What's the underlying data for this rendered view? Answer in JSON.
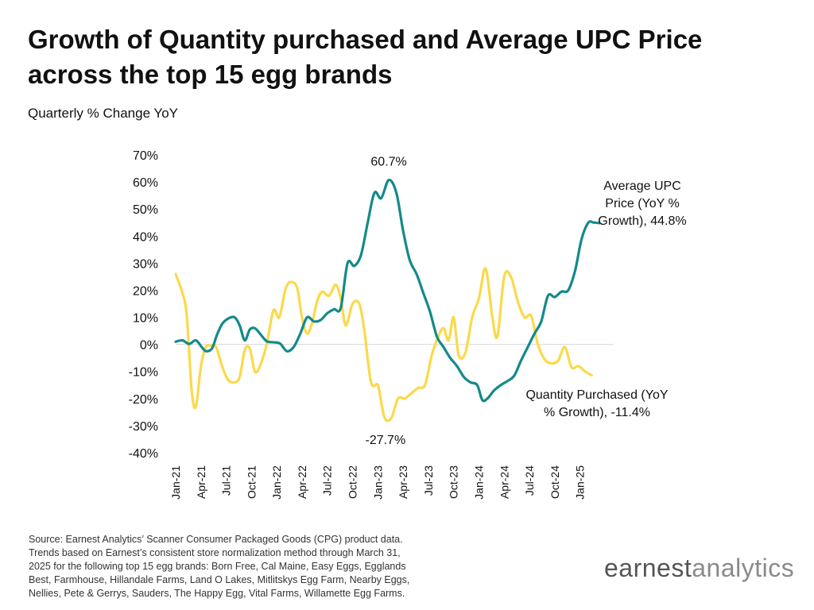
{
  "title_line1": "Growth of Quantity purchased and Average UPC Price",
  "title_line2": "across the top 15 egg brands",
  "subtitle": "Quarterly % Change YoY",
  "source_lines": [
    "Source: Earnest Analytics’ Scanner Consumer Packaged Goods (CPG) product data.",
    "Trends based on Earnest’s consistent store normalization method through March 31,",
    "2025 for the following top 15 egg brands: Born Free, Cal Maine, Easy Eggs, Egglands",
    "Best, Farmhouse, Hillandale Farms, Land O Lakes, Mitlitskys Egg Farm, Nearby Eggs,",
    "Nellies, Pete & Gerrys, Sauders, The Happy Egg, Vital Farms, Willamette Egg Farms."
  ],
  "logo": {
    "part1": "earnest",
    "part2": "analytics"
  },
  "chart_data": {
    "type": "line",
    "y_ticks": [
      "70%",
      "60%",
      "50%",
      "40%",
      "30%",
      "20%",
      "10%",
      "0%",
      "-10%",
      "-20%",
      "-30%",
      "-40%"
    ],
    "ylim": [
      -40,
      70
    ],
    "xlim": [
      0,
      52
    ],
    "x_ticks": [
      {
        "label": "Jan-21",
        "x": 0
      },
      {
        "label": "Apr-21",
        "x": 3
      },
      {
        "label": "Jul-21",
        "x": 6
      },
      {
        "label": "Oct-21",
        "x": 9
      },
      {
        "label": "Jan-22",
        "x": 12
      },
      {
        "label": "Apr-22",
        "x": 15
      },
      {
        "label": "Jul-22",
        "x": 18
      },
      {
        "label": "Oct-22",
        "x": 21
      },
      {
        "label": "Jan-23",
        "x": 24
      },
      {
        "label": "Apr-23",
        "x": 27
      },
      {
        "label": "Jul-23",
        "x": 30
      },
      {
        "label": "Oct-23",
        "x": 33
      },
      {
        "label": "Jan-24",
        "x": 36
      },
      {
        "label": "Apr-24",
        "x": 39
      },
      {
        "label": "Jul-24",
        "x": 42
      },
      {
        "label": "Oct-24",
        "x": 45
      },
      {
        "label": "Jan-25",
        "x": 48
      }
    ],
    "zero_line": true,
    "series": [
      {
        "color": "#148a8a",
        "points": [
          [
            0,
            1
          ],
          [
            0.8,
            1.5
          ],
          [
            1.6,
            0.2
          ],
          [
            2.4,
            1.5
          ],
          [
            3.1,
            -1
          ],
          [
            3.6,
            -2.5
          ],
          [
            4.3,
            -1.5
          ],
          [
            4.9,
            3.5
          ],
          [
            5.5,
            7.5
          ],
          [
            6.2,
            9.5
          ],
          [
            7.0,
            10
          ],
          [
            7.6,
            7
          ],
          [
            8.2,
            1.5
          ],
          [
            8.8,
            5.5
          ],
          [
            9.4,
            6
          ],
          [
            10.0,
            4
          ],
          [
            10.8,
            1.2
          ],
          [
            11.6,
            0.8
          ],
          [
            12.4,
            0.3
          ],
          [
            13.2,
            -2.5
          ],
          [
            14.0,
            -1
          ],
          [
            14.8,
            4
          ],
          [
            15.6,
            10
          ],
          [
            16.4,
            8.5
          ],
          [
            17.2,
            9
          ],
          [
            18.0,
            11.5
          ],
          [
            18.8,
            13
          ],
          [
            19.6,
            13.5
          ],
          [
            20.4,
            30
          ],
          [
            21.2,
            29
          ],
          [
            22.0,
            33
          ],
          [
            22.8,
            45
          ],
          [
            23.6,
            56
          ],
          [
            24.4,
            54
          ],
          [
            25.3,
            60.7
          ],
          [
            26.2,
            56
          ],
          [
            27.0,
            42
          ],
          [
            27.8,
            31
          ],
          [
            28.6,
            26
          ],
          [
            29.4,
            19
          ],
          [
            30.2,
            12
          ],
          [
            31.0,
            3
          ],
          [
            31.8,
            -1
          ],
          [
            32.6,
            -5
          ],
          [
            33.4,
            -8
          ],
          [
            34.2,
            -12
          ],
          [
            35.0,
            -14
          ],
          [
            35.8,
            -15
          ],
          [
            36.4,
            -20.5
          ],
          [
            37.0,
            -20
          ],
          [
            37.8,
            -17
          ],
          [
            38.6,
            -15
          ],
          [
            39.4,
            -13.5
          ],
          [
            40.2,
            -11.5
          ],
          [
            41.0,
            -6
          ],
          [
            41.8,
            -1
          ],
          [
            42.6,
            4
          ],
          [
            43.4,
            8.5
          ],
          [
            44.2,
            18
          ],
          [
            45.0,
            17.5
          ],
          [
            45.8,
            19.5
          ],
          [
            46.6,
            20
          ],
          [
            47.4,
            27
          ],
          [
            48.2,
            39
          ],
          [
            49.0,
            45
          ],
          [
            49.6,
            45
          ],
          [
            50.3,
            44.8
          ]
        ],
        "label_lines": [
          "Average UPC",
          "Price (YoY %",
          "Growth), 44.8%"
        ]
      },
      {
        "color": "#fbd94b",
        "points": [
          [
            0,
            26
          ],
          [
            0.7,
            20
          ],
          [
            1.3,
            11
          ],
          [
            1.9,
            -17
          ],
          [
            2.4,
            -23
          ],
          [
            3.0,
            -8
          ],
          [
            3.6,
            -1
          ],
          [
            4.2,
            -0.5
          ],
          [
            4.8,
            -1
          ],
          [
            5.5,
            -8
          ],
          [
            6.2,
            -13
          ],
          [
            7.0,
            -14
          ],
          [
            7.6,
            -12
          ],
          [
            8.2,
            -2
          ],
          [
            8.8,
            -1.5
          ],
          [
            9.4,
            -10
          ],
          [
            10.0,
            -8
          ],
          [
            10.8,
            0
          ],
          [
            11.6,
            12.5
          ],
          [
            12.3,
            10
          ],
          [
            13.0,
            20
          ],
          [
            13.6,
            23
          ],
          [
            14.4,
            21
          ],
          [
            15.0,
            10
          ],
          [
            15.6,
            4
          ],
          [
            16.2,
            8
          ],
          [
            16.8,
            16
          ],
          [
            17.4,
            19.5
          ],
          [
            18.2,
            18
          ],
          [
            19.0,
            22
          ],
          [
            19.6,
            17
          ],
          [
            20.2,
            7
          ],
          [
            21.0,
            15
          ],
          [
            21.8,
            15
          ],
          [
            22.4,
            5
          ],
          [
            23.2,
            -14
          ],
          [
            24.0,
            -15
          ],
          [
            24.5,
            -23
          ],
          [
            24.9,
            -27.7
          ],
          [
            25.6,
            -27.2
          ],
          [
            26.4,
            -20
          ],
          [
            27.2,
            -20
          ],
          [
            28.0,
            -18
          ],
          [
            28.8,
            -16
          ],
          [
            29.6,
            -15
          ],
          [
            30.4,
            -4
          ],
          [
            31.2,
            3
          ],
          [
            31.8,
            6
          ],
          [
            32.4,
            1.5
          ],
          [
            33.0,
            10
          ],
          [
            33.6,
            -4
          ],
          [
            34.4,
            -3
          ],
          [
            35.2,
            10
          ],
          [
            36.0,
            17
          ],
          [
            36.8,
            28
          ],
          [
            37.6,
            10
          ],
          [
            38.2,
            3
          ],
          [
            39.0,
            25
          ],
          [
            39.8,
            25
          ],
          [
            40.6,
            16
          ],
          [
            41.4,
            10
          ],
          [
            42.2,
            10.5
          ],
          [
            43.0,
            0
          ],
          [
            43.8,
            -5.5
          ],
          [
            44.6,
            -7
          ],
          [
            45.4,
            -6
          ],
          [
            46.2,
            -1
          ],
          [
            47.0,
            -8.5
          ],
          [
            47.8,
            -8
          ],
          [
            48.6,
            -10
          ],
          [
            49.4,
            -11.4
          ]
        ],
        "label_lines": [
          "Quantity Purchased (YoY",
          "% Growth), -11.4%"
        ]
      }
    ],
    "annotations": [
      {
        "text": "60.7%",
        "x": 25.3,
        "y": 60.7
      },
      {
        "text": "-27.7%",
        "x": 24.9,
        "y": -27.7
      }
    ]
  }
}
